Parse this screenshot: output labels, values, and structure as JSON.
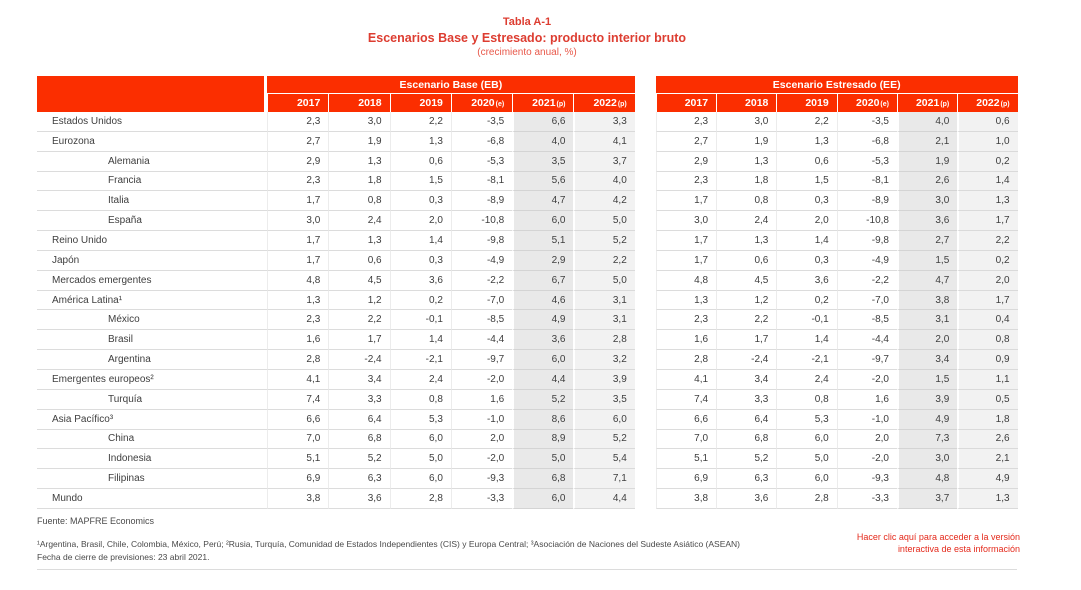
{
  "title": {
    "line1": "Tabla A-1",
    "line2": "Escenarios Base y Estresado: producto interior bruto",
    "line3": "(crecimiento anual, %)"
  },
  "colors": {
    "header_red": "#fb2e00",
    "title_red": "#dd3d31",
    "link_red": "#e4291b",
    "shade_2021": "#e9e9e9",
    "shade_2022": "#f2f2f2"
  },
  "table": {
    "scenarios": [
      {
        "name": "Escenario Base (EB)"
      },
      {
        "name": "Escenario Estresado (EE)"
      }
    ],
    "years": [
      {
        "label": "2017",
        "suffix": ""
      },
      {
        "label": "2018",
        "suffix": ""
      },
      {
        "label": "2019",
        "suffix": ""
      },
      {
        "label": "2020",
        "suffix": "(e)"
      },
      {
        "label": "2021",
        "suffix": "(p)"
      },
      {
        "label": "2022",
        "suffix": "(p)"
      }
    ],
    "rows": [
      {
        "label": "Estados Unidos",
        "indent": 0,
        "eb": [
          "2,3",
          "3,0",
          "2,2",
          "-3,5",
          "6,6",
          "3,3"
        ],
        "ee": [
          "2,3",
          "3,0",
          "2,2",
          "-3,5",
          "4,0",
          "0,6"
        ]
      },
      {
        "label": "Eurozona",
        "indent": 0,
        "eb": [
          "2,7",
          "1,9",
          "1,3",
          "-6,8",
          "4,0",
          "4,1"
        ],
        "ee": [
          "2,7",
          "1,9",
          "1,3",
          "-6,8",
          "2,1",
          "1,0"
        ]
      },
      {
        "label": "Alemania",
        "indent": 1,
        "eb": [
          "2,9",
          "1,3",
          "0,6",
          "-5,3",
          "3,5",
          "3,7"
        ],
        "ee": [
          "2,9",
          "1,3",
          "0,6",
          "-5,3",
          "1,9",
          "0,2"
        ]
      },
      {
        "label": "Francia",
        "indent": 1,
        "eb": [
          "2,3",
          "1,8",
          "1,5",
          "-8,1",
          "5,6",
          "4,0"
        ],
        "ee": [
          "2,3",
          "1,8",
          "1,5",
          "-8,1",
          "2,6",
          "1,4"
        ]
      },
      {
        "label": "Italia",
        "indent": 1,
        "eb": [
          "1,7",
          "0,8",
          "0,3",
          "-8,9",
          "4,7",
          "4,2"
        ],
        "ee": [
          "1,7",
          "0,8",
          "0,3",
          "-8,9",
          "3,0",
          "1,3"
        ]
      },
      {
        "label": "España",
        "indent": 1,
        "eb": [
          "3,0",
          "2,4",
          "2,0",
          "-10,8",
          "6,0",
          "5,0"
        ],
        "ee": [
          "3,0",
          "2,4",
          "2,0",
          "-10,8",
          "3,6",
          "1,7"
        ]
      },
      {
        "label": "Reino Unido",
        "indent": 0,
        "eb": [
          "1,7",
          "1,3",
          "1,4",
          "-9,8",
          "5,1",
          "5,2"
        ],
        "ee": [
          "1,7",
          "1,3",
          "1,4",
          "-9,8",
          "2,7",
          "2,2"
        ]
      },
      {
        "label": "Japón",
        "indent": 0,
        "eb": [
          "1,7",
          "0,6",
          "0,3",
          "-4,9",
          "2,9",
          "2,2"
        ],
        "ee": [
          "1,7",
          "0,6",
          "0,3",
          "-4,9",
          "1,5",
          "0,2"
        ]
      },
      {
        "label": "Mercados emergentes",
        "indent": 0,
        "eb": [
          "4,8",
          "4,5",
          "3,6",
          "-2,2",
          "6,7",
          "5,0"
        ],
        "ee": [
          "4,8",
          "4,5",
          "3,6",
          "-2,2",
          "4,7",
          "2,0"
        ]
      },
      {
        "label": "América Latina¹",
        "indent": 0,
        "eb": [
          "1,3",
          "1,2",
          "0,2",
          "-7,0",
          "4,6",
          "3,1"
        ],
        "ee": [
          "1,3",
          "1,2",
          "0,2",
          "-7,0",
          "3,8",
          "1,7"
        ]
      },
      {
        "label": "México",
        "indent": 1,
        "eb": [
          "2,3",
          "2,2",
          "-0,1",
          "-8,5",
          "4,9",
          "3,1"
        ],
        "ee": [
          "2,3",
          "2,2",
          "-0,1",
          "-8,5",
          "3,1",
          "0,4"
        ]
      },
      {
        "label": "Brasil",
        "indent": 1,
        "eb": [
          "1,6",
          "1,7",
          "1,4",
          "-4,4",
          "3,6",
          "2,8"
        ],
        "ee": [
          "1,6",
          "1,7",
          "1,4",
          "-4,4",
          "2,0",
          "0,8"
        ]
      },
      {
        "label": "Argentina",
        "indent": 1,
        "eb": [
          "2,8",
          "-2,4",
          "-2,1",
          "-9,7",
          "6,0",
          "3,2"
        ],
        "ee": [
          "2,8",
          "-2,4",
          "-2,1",
          "-9,7",
          "3,4",
          "0,9"
        ]
      },
      {
        "label": "Emergentes europeos²",
        "indent": 0,
        "eb": [
          "4,1",
          "3,4",
          "2,4",
          "-2,0",
          "4,4",
          "3,9"
        ],
        "ee": [
          "4,1",
          "3,4",
          "2,4",
          "-2,0",
          "1,5",
          "1,1"
        ]
      },
      {
        "label": "Turquía",
        "indent": 1,
        "eb": [
          "7,4",
          "3,3",
          "0,8",
          "1,6",
          "5,2",
          "3,5"
        ],
        "ee": [
          "7,4",
          "3,3",
          "0,8",
          "1,6",
          "3,9",
          "0,5"
        ]
      },
      {
        "label": "Asia Pacífico³",
        "indent": 0,
        "eb": [
          "6,6",
          "6,4",
          "5,3",
          "-1,0",
          "8,6",
          "6,0"
        ],
        "ee": [
          "6,6",
          "6,4",
          "5,3",
          "-1,0",
          "4,9",
          "1,8"
        ]
      },
      {
        "label": "China",
        "indent": 1,
        "eb": [
          "7,0",
          "6,8",
          "6,0",
          "2,0",
          "8,9",
          "5,2"
        ],
        "ee": [
          "7,0",
          "6,8",
          "6,0",
          "2,0",
          "7,3",
          "2,6"
        ]
      },
      {
        "label": "Indonesia",
        "indent": 1,
        "eb": [
          "5,1",
          "5,2",
          "5,0",
          "-2,0",
          "5,0",
          "5,4"
        ],
        "ee": [
          "5,1",
          "5,2",
          "5,0",
          "-2,0",
          "3,0",
          "2,1"
        ]
      },
      {
        "label": "Filipinas",
        "indent": 1,
        "eb": [
          "6,9",
          "6,3",
          "6,0",
          "-9,3",
          "6,8",
          "7,1"
        ],
        "ee": [
          "6,9",
          "6,3",
          "6,0",
          "-9,3",
          "4,8",
          "4,9"
        ]
      },
      {
        "label": "Mundo",
        "indent": 0,
        "eb": [
          "3,8",
          "3,6",
          "2,8",
          "-3,3",
          "6,0",
          "4,4"
        ],
        "ee": [
          "3,8",
          "3,6",
          "2,8",
          "-3,3",
          "3,7",
          "1,3"
        ]
      }
    ]
  },
  "footer": {
    "source": "Fuente: MAPFRE Economics",
    "footnotes": "¹Argentina, Brasil, Chile, Colombia, México, Perú; ²Rusia, Turquía, Comunidad de Estados Independientes (CIS) y Europa Central; ³Asociación de Naciones del Sudeste Asiático (ASEAN)",
    "closing_date": "Fecha de cierre de previsiones: 23 abril 2021."
  },
  "link": {
    "line1": "Hacer clic aquí para acceder a la versión",
    "line2": "interactiva de esta información"
  }
}
